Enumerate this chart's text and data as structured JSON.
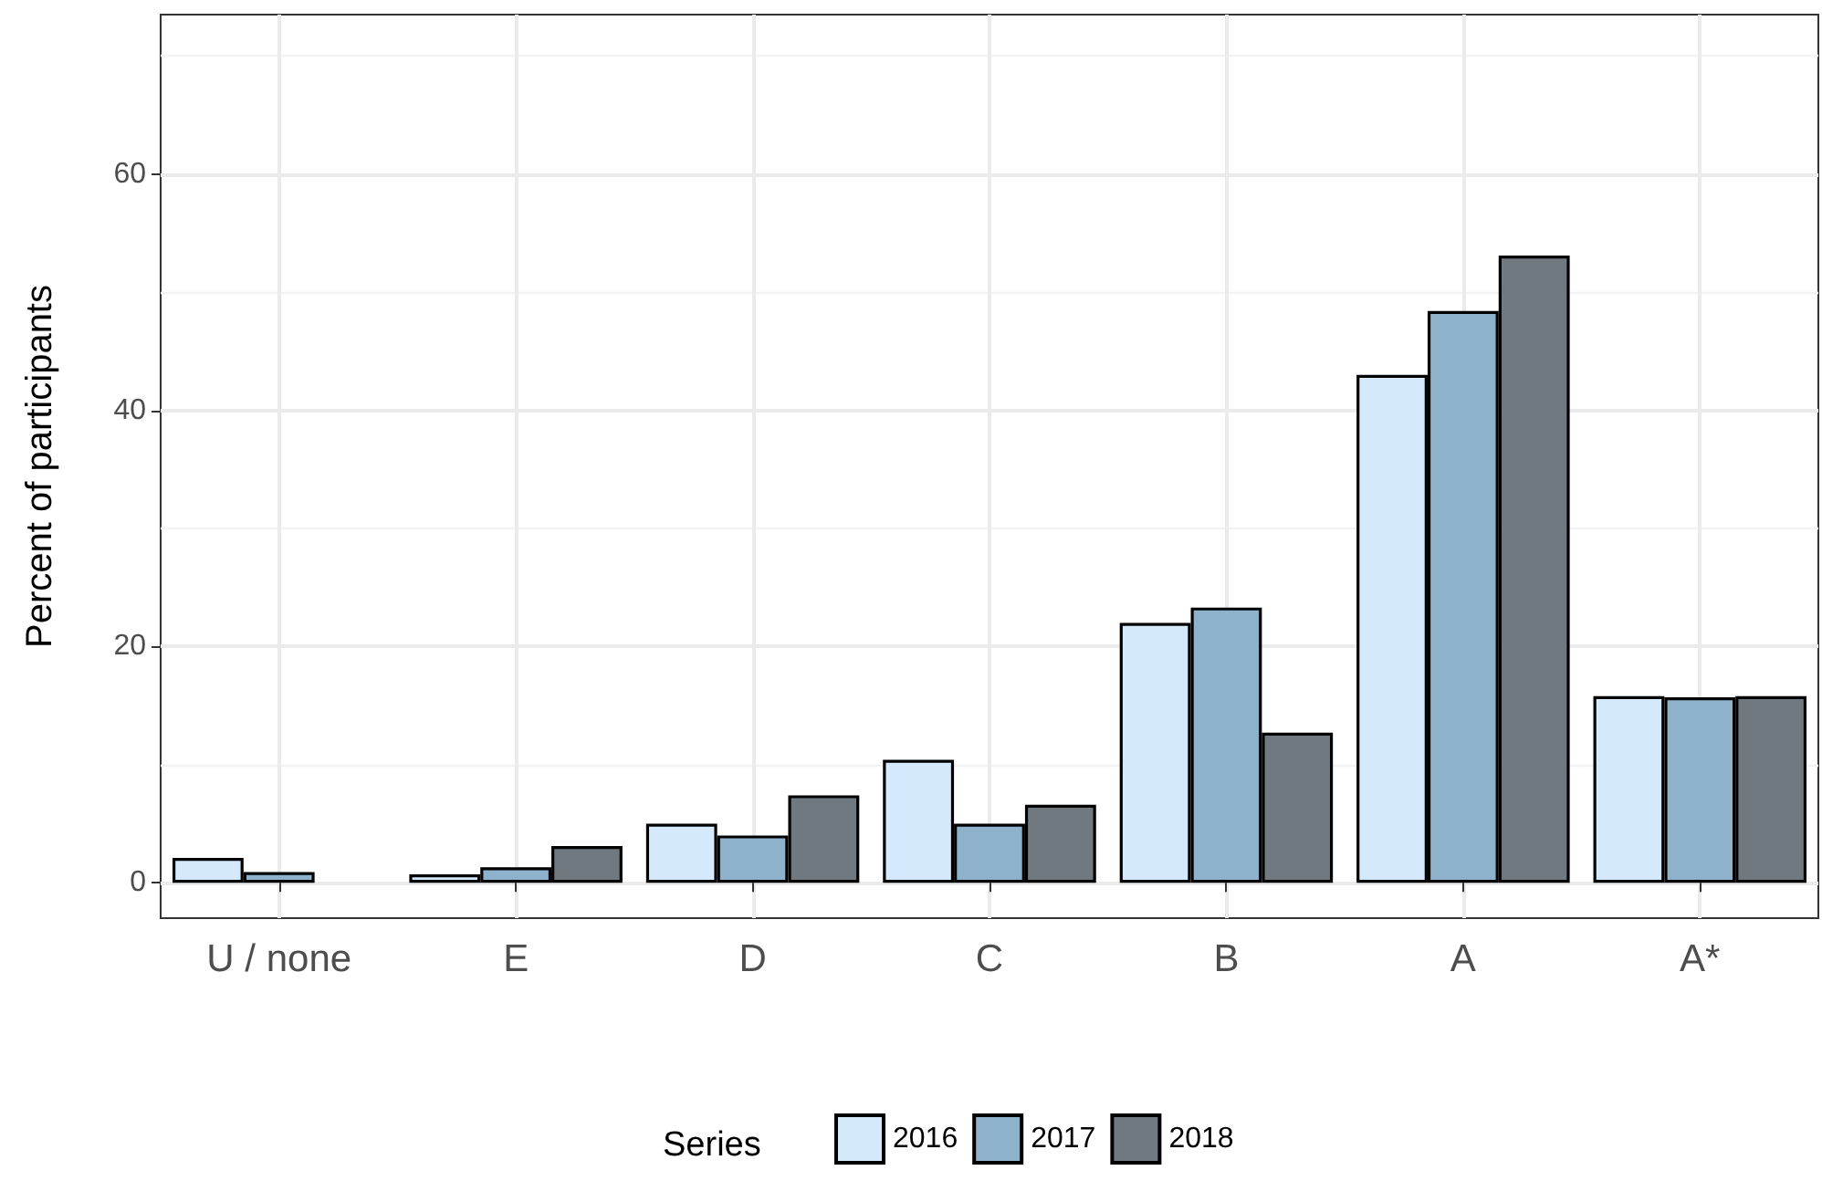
{
  "chart_data": {
    "type": "bar",
    "ylabel": "Percent of participants",
    "legend_title": "Series",
    "categories": [
      "U / none",
      "E",
      "D",
      "C",
      "B",
      "A",
      "A*"
    ],
    "series": [
      {
        "name": "2016",
        "color": "#d4eafc",
        "values": [
          2.1,
          0.7,
          5.0,
          10.4,
          22.0,
          43.0,
          15.8
        ]
      },
      {
        "name": "2017",
        "color": "#8fb2cc",
        "values": [
          0.9,
          1.3,
          4.0,
          5.0,
          23.3,
          48.4,
          15.7
        ]
      },
      {
        "name": "2018",
        "color": "#717980",
        "values": [
          null,
          3.1,
          7.4,
          6.6,
          12.7,
          53.1,
          15.8
        ]
      }
    ],
    "ylim": [
      -3,
      73.5
    ],
    "yticks": [
      0,
      20,
      40,
      60
    ],
    "grid": true,
    "legend": "bottom"
  }
}
